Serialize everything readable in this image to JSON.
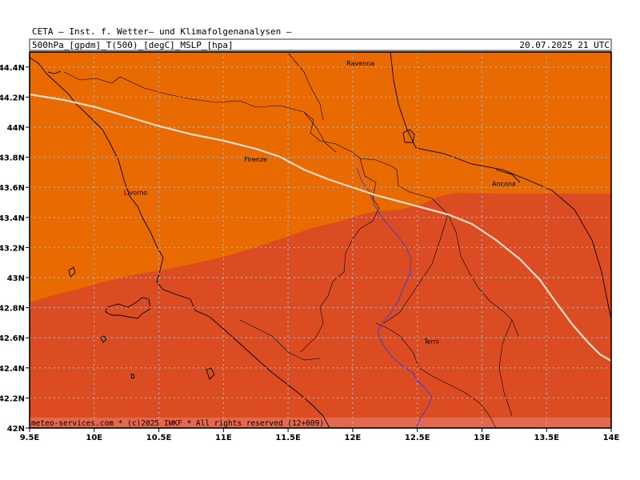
{
  "header": {
    "institute": "CETA — Inst. f. Wetter— und Klimafolgenanalysen —",
    "fields": "500hPa_[gpdm]_T(500)_[degC]_MSLP_[hpa]",
    "datetime": "20.07.2025 21 UTC"
  },
  "map": {
    "lon_range": [
      9.5,
      14
    ],
    "lat_range": [
      42,
      44.5
    ],
    "lon_ticks": [
      {
        "value": 9.5,
        "label": "9.5E"
      },
      {
        "value": 10,
        "label": "10E"
      },
      {
        "value": 10.5,
        "label": "10.5E"
      },
      {
        "value": 11,
        "label": "11E"
      },
      {
        "value": 11.5,
        "label": "11.5E"
      },
      {
        "value": 12,
        "label": "12E"
      },
      {
        "value": 12.5,
        "label": "12.5E"
      },
      {
        "value": 13,
        "label": "13E"
      },
      {
        "value": 13.5,
        "label": "13.5E"
      },
      {
        "value": 14,
        "label": "14E"
      }
    ],
    "lat_ticks": [
      {
        "value": 42,
        "label": "42N"
      },
      {
        "value": 42.2,
        "label": "42.2N"
      },
      {
        "value": 42.4,
        "label": "42.4N"
      },
      {
        "value": 42.6,
        "label": "42.6N"
      },
      {
        "value": 42.8,
        "label": "42.8N"
      },
      {
        "value": 43,
        "label": "43N"
      },
      {
        "value": 43.2,
        "label": "43.2N"
      },
      {
        "value": 43.4,
        "label": "43.4N"
      },
      {
        "value": 43.6,
        "label": "43.6N"
      },
      {
        "value": 43.8,
        "label": "43.8N"
      },
      {
        "value": 44,
        "label": "44N"
      },
      {
        "value": 44.2,
        "label": "44.2N"
      },
      {
        "value": 44.4,
        "label": "44.4N"
      }
    ],
    "cities": [
      {
        "name": "Ravenna",
        "lon": 12.06,
        "lat": 44.41
      },
      {
        "name": "Firenze",
        "lon": 11.25,
        "lat": 43.77
      },
      {
        "name": "Livorno",
        "lon": 10.32,
        "lat": 43.55
      },
      {
        "name": "Ancona",
        "lon": 13.17,
        "lat": 43.61
      },
      {
        "name": "Terni",
        "lon": 12.61,
        "lat": 42.56
      }
    ],
    "colors": {
      "warm_fill": "#e86a00",
      "warmer_fill": "#dc4c22",
      "strip_fill": "#e4684c",
      "contour": "#f2dcc8",
      "coast": "#000000",
      "river": "#3a3ad8",
      "grid": "#aaaaaa"
    },
    "credit": "meteo-services.com * (c)2025 IWKF * All rights reserved (12+009)"
  }
}
